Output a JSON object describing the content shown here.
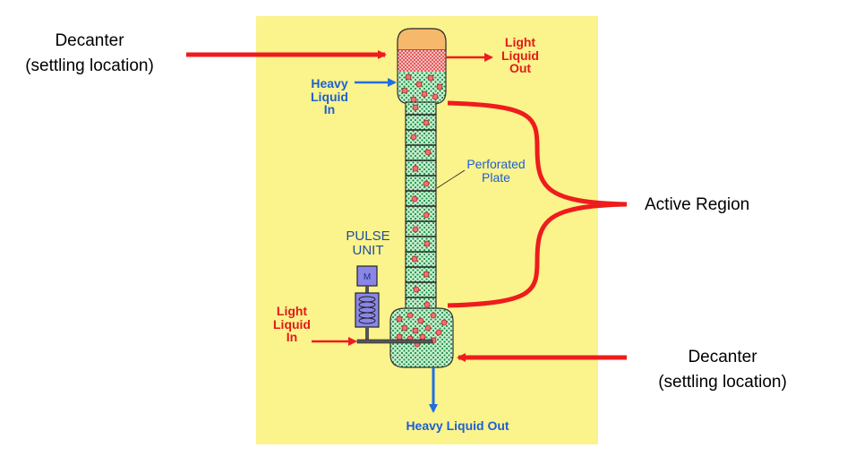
{
  "labels": {
    "decanter_top": [
      "Decanter",
      "(settling location)"
    ],
    "decanter_bottom": [
      "Decanter",
      "(settling location)"
    ],
    "active_region": "Active Region",
    "light_liquid_out": [
      "Light",
      "Liquid",
      "Out"
    ],
    "heavy_liquid_in": [
      "Heavy",
      "Liquid",
      "In"
    ],
    "perforated_plate": [
      "Perforated",
      "Plate"
    ],
    "pulse_unit": [
      "PULSE",
      "UNIT"
    ],
    "motor": "M",
    "light_liquid_in": [
      "Light",
      "Liquid",
      "In"
    ],
    "heavy_liquid_out": "Heavy Liquid Out"
  },
  "colors": {
    "panel_background": "#fbf38c",
    "column_fill": "#22a85a",
    "organic_layer": "#f6b86a",
    "droplet": "#f07070",
    "arrow_red": "#ee1c1c",
    "arrow_blue": "#1f6fe0",
    "pulse_unit": "#8a86e8"
  }
}
